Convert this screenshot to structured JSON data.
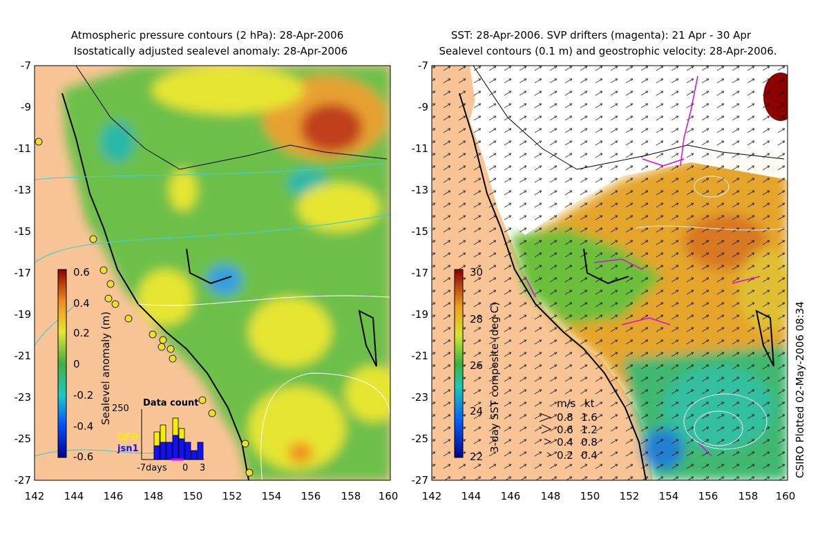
{
  "left_panel": {
    "title_line1": "Atmospheric pressure contours (2 hPa): 28-Apr-2006",
    "title_line2": "Isostatically adjusted sealevel anomaly: 28-Apr-2006",
    "colorbar_label": "Sealevel anomaly (m)",
    "colorbar_ticks": [
      "0.6",
      "0.4",
      "0.2",
      "0",
      "-0.2",
      "-0.4",
      "-0.6"
    ],
    "inset": {
      "title": "Data count",
      "ymax_label": "250",
      "series": [
        {
          "name": "GFO",
          "color": "#f0f000"
        },
        {
          "name": "jsn1",
          "color": "#0000ff"
        }
      ],
      "x_labels": [
        "-7days",
        "0",
        "3"
      ]
    }
  },
  "right_panel": {
    "title_line1": "SST: 28-Apr-2006. SVP drifters (magenta): 21 Apr - 30 Apr",
    "title_line2": "Sealevel contours (0.1 m) and geostrophic velocity: 28-Apr-2006.",
    "colorbar_label": "3-day SST composite (deg C)",
    "colorbar_ticks": [
      "30",
      "28",
      "26",
      "24",
      "22"
    ],
    "velocity_legend": {
      "header_ms": "m/s",
      "header_kt": "kt",
      "rows": [
        {
          "ms": "0.8",
          "kt": "1.6"
        },
        {
          "ms": "0.6",
          "kt": "1.2"
        },
        {
          "ms": "0.4",
          "kt": "0.8"
        },
        {
          "ms": "0.2",
          "kt": "0.4"
        }
      ]
    }
  },
  "axes": {
    "y_ticks": [
      "-7",
      "-9",
      "-11",
      "-13",
      "-15",
      "-17",
      "-19",
      "-21",
      "-23",
      "-25",
      "-27"
    ],
    "x_ticks": [
      "142",
      "144",
      "146",
      "148",
      "150",
      "152",
      "154",
      "156",
      "158",
      "160"
    ]
  },
  "credit": "CSIRO Plotted 02-May-2006 08:34",
  "colors": {
    "land": "#f9c596",
    "ocean_green": "#6fc34a",
    "ocean_yellow": "#e4e634",
    "sst_orange": "#e5a52c",
    "drifter_magenta": "#e600e6"
  }
}
